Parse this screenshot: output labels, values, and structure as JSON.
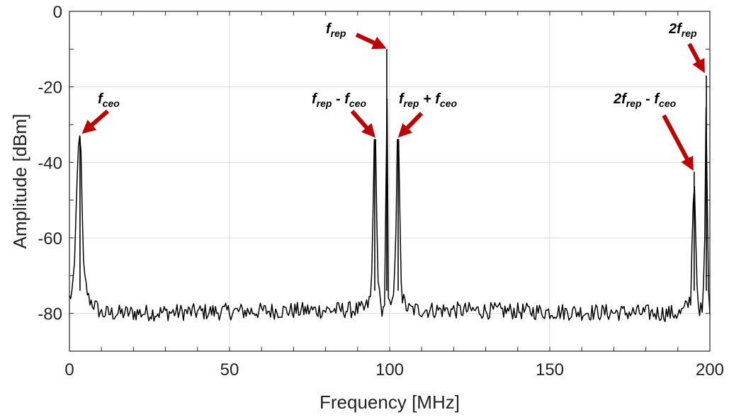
{
  "chart_data": {
    "type": "line",
    "xlabel": "Frequency [MHz]",
    "ylabel": "Amplitude [dBm]",
    "xlim": [
      0,
      200
    ],
    "ylim": [
      -90,
      0
    ],
    "x_ticks": [
      0,
      50,
      100,
      150,
      200
    ],
    "x_tick_labels": [
      "0",
      "50",
      "100",
      "150",
      "200"
    ],
    "y_ticks": [
      0,
      -20,
      -40,
      -60,
      -80
    ],
    "y_tick_labels": [
      "0",
      "-20",
      "-40",
      "-60",
      "-80"
    ],
    "grid": true,
    "noise_floor_dBm": -80,
    "series": [
      {
        "color": "#000000",
        "x": [
          0,
          0.5,
          1,
          1.5,
          2,
          2.5,
          3,
          3.3,
          3.6,
          4,
          4.5,
          5,
          5.5,
          6,
          8,
          10,
          92,
          93,
          94,
          94.6,
          95.1,
          95.6,
          96.2,
          97,
          98,
          98.6,
          99.1,
          99.6,
          100.2,
          101,
          101.8,
          102.4,
          102.9,
          103.4,
          104,
          105,
          106,
          190,
          191,
          192,
          193,
          194,
          194.6,
          195.1,
          195.6,
          196.2,
          197,
          197.8,
          198.4,
          198.9,
          199.4,
          200
        ],
        "y": [
          -76,
          -75,
          -74,
          -70,
          -56,
          -40,
          -33,
          -33,
          -37,
          -55,
          -70,
          -72,
          -74,
          -76,
          -78,
          -80,
          -79,
          -78,
          -76,
          -67,
          -34,
          -34,
          -67,
          -78,
          -79,
          -76,
          -10,
          -76,
          -79,
          -78,
          -67,
          -34,
          -34,
          -67,
          -76,
          -78,
          -79,
          -80,
          -80,
          -79,
          -78,
          -76,
          -56,
          -43,
          -60,
          -77,
          -79,
          -80,
          -60,
          -17,
          -74,
          -78
        ]
      }
    ],
    "peaks": [
      {
        "label": "f_ceo",
        "x": 3.3,
        "y": -33
      },
      {
        "label": "f_rep - f_ceo",
        "x": 95.35,
        "y": -33.8
      },
      {
        "label": "f_rep",
        "x": 99.1,
        "y": -10
      },
      {
        "label": "f_rep + f_ceo",
        "x": 102.65,
        "y": -33.8
      },
      {
        "label": "2f_rep - f_ceo",
        "x": 195.1,
        "y": -42.5
      },
      {
        "label": "2f_rep",
        "x": 198.9,
        "y": -17
      }
    ],
    "annotations": [
      {
        "parts": [
          {
            "t": "f",
            "sub": false
          },
          {
            "t": "ceo",
            "sub": true
          }
        ]
      },
      {
        "parts": [
          {
            "t": "f",
            "sub": false
          },
          {
            "t": "rep",
            "sub": true
          },
          {
            "t": " - f",
            "sub": false
          },
          {
            "t": "ceo",
            "sub": true
          }
        ]
      },
      {
        "parts": [
          {
            "t": "f",
            "sub": false
          },
          {
            "t": "rep",
            "sub": true
          }
        ]
      },
      {
        "parts": [
          {
            "t": "f",
            "sub": false
          },
          {
            "t": "rep",
            "sub": true
          },
          {
            "t": " + f",
            "sub": false
          },
          {
            "t": "ceo",
            "sub": true
          }
        ]
      },
      {
        "parts": [
          {
            "t": "2f",
            "sub": false
          },
          {
            "t": "rep",
            "sub": true
          },
          {
            "t": " - f",
            "sub": false
          },
          {
            "t": "ceo",
            "sub": true
          }
        ]
      },
      {
        "parts": [
          {
            "t": "2f",
            "sub": false
          },
          {
            "t": "rep",
            "sub": true
          }
        ]
      }
    ],
    "arrow_color": "#c00000"
  }
}
